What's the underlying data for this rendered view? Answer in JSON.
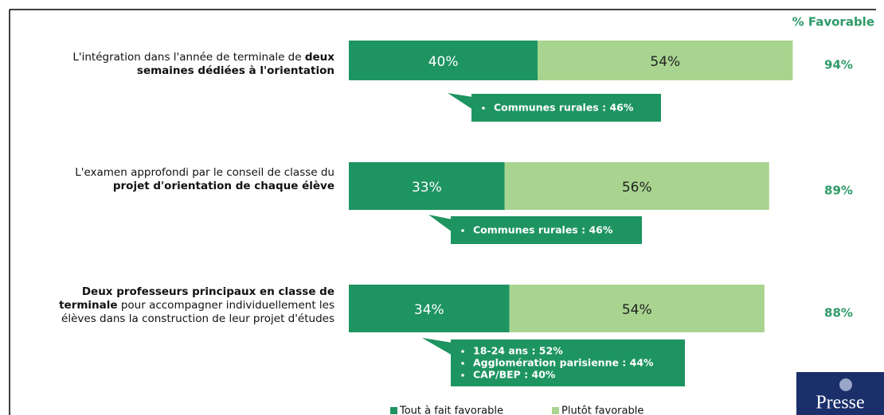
{
  "chart_data": {
    "type": "stacked-bar-horizontal",
    "categories": [
      [
        [
          {
            "text": "L'intégration dans l'année de terminale de ",
            "bold": false
          },
          {
            "text": "deux",
            "bold": true
          }
        ],
        [
          {
            "text": "semaines dédiées à l'orientation",
            "bold": true
          }
        ]
      ],
      [
        [
          {
            "text": "L'examen approfondi par le conseil de classe du",
            "bold": false
          }
        ],
        [
          {
            "text": "projet d'orientation de chaque élève",
            "bold": true
          }
        ]
      ],
      [
        [
          {
            "text": "Deux professeurs principaux en classe de",
            "bold": true
          }
        ],
        [
          {
            "text": "terminale",
            "bold": true
          },
          {
            "text": " pour accompagner individuellement les",
            "bold": false
          }
        ],
        [
          {
            "text": "élèves dans la construction de leur projet d'études",
            "bold": false
          }
        ]
      ]
    ],
    "series": [
      {
        "name": "Tout à fait favorable",
        "color": "#1e9461",
        "text_color": "#ffffff",
        "values": [
          40,
          33,
          34
        ],
        "value_labels": [
          "40%",
          "33%",
          "34%"
        ]
      },
      {
        "name": "Plutôt favorable",
        "color": "#a8d48f",
        "text_color": "#222222",
        "values": [
          54,
          56,
          54
        ],
        "value_labels": [
          "54%",
          "56%",
          "54%"
        ]
      }
    ],
    "totals_header": "% Favorable",
    "totals": [
      94,
      89,
      88
    ],
    "total_labels": [
      "94%",
      "89%",
      "88%"
    ],
    "annotations": [
      [
        "Communes rurales : 46%"
      ],
      [
        "Communes rurales : 46%"
      ],
      [
        "18-24 ans : 52%",
        "Agglomération parisienne  : 44%",
        "CAP/BEP : 40%"
      ]
    ],
    "annotation_color": "#1e9461",
    "xlim": [
      0,
      100
    ],
    "logo": "Presse"
  }
}
